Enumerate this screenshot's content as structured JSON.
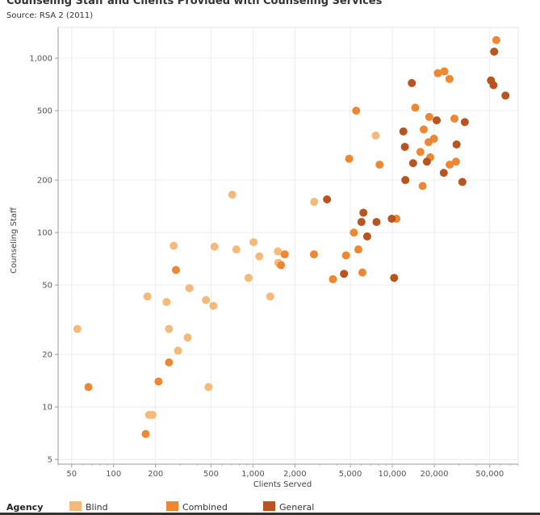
{
  "title": "Counseling Staff and Clients Provided with Counseling Services",
  "subtitle": "Source: RSA 2 (2011)",
  "legend": {
    "title": "Agency",
    "items": [
      {
        "label": "Blind",
        "color": "#f5b97a"
      },
      {
        "label": "Combined",
        "color": "#ee8733"
      },
      {
        "label": "General",
        "color": "#b7541f"
      }
    ]
  },
  "chart_data": {
    "type": "scatter",
    "xlabel": "Clients Served",
    "ylabel": "Counseling Staff",
    "x_scale": "log",
    "y_scale": "log",
    "xlim": [
      40,
      80000
    ],
    "ylim": [
      4.7,
      1500
    ],
    "x_ticks": [
      {
        "value": 50,
        "label": "50"
      },
      {
        "value": 100,
        "label": "100"
      },
      {
        "value": 200,
        "label": "200"
      },
      {
        "value": 500,
        "label": "500"
      },
      {
        "value": 1000,
        "label": "1,000"
      },
      {
        "value": 2000,
        "label": "2,000"
      },
      {
        "value": 5000,
        "label": "5,000"
      },
      {
        "value": 10000,
        "label": "10,000"
      },
      {
        "value": 20000,
        "label": "20,000"
      },
      {
        "value": 50000,
        "label": "50,000"
      }
    ],
    "y_ticks": [
      {
        "value": 5,
        "label": "5"
      },
      {
        "value": 10,
        "label": "10"
      },
      {
        "value": 20,
        "label": "20"
      },
      {
        "value": 50,
        "label": "50"
      },
      {
        "value": 100,
        "label": "100"
      },
      {
        "value": 200,
        "label": "200"
      },
      {
        "value": 500,
        "label": "500"
      },
      {
        "value": 1000,
        "label": "1,000"
      }
    ],
    "grid": true,
    "series": [
      {
        "name": "Blind",
        "color": "#f5b97a",
        "points": [
          [
            55,
            28
          ],
          [
            175,
            43
          ],
          [
            180,
            9
          ],
          [
            190,
            9
          ],
          [
            240,
            40
          ],
          [
            250,
            28
          ],
          [
            270,
            84
          ],
          [
            290,
            21
          ],
          [
            340,
            25
          ],
          [
            350,
            48
          ],
          [
            460,
            41
          ],
          [
            480,
            13
          ],
          [
            520,
            38
          ],
          [
            530,
            83
          ],
          [
            710,
            165
          ],
          [
            760,
            80
          ],
          [
            930,
            55
          ],
          [
            1010,
            88
          ],
          [
            1110,
            73
          ],
          [
            1330,
            43
          ],
          [
            1510,
            78
          ],
          [
            1520,
            67
          ],
          [
            1560,
            66
          ],
          [
            2750,
            150
          ],
          [
            7600,
            360
          ]
        ]
      },
      {
        "name": "Combined",
        "color": "#ee8733",
        "points": [
          [
            66,
            13
          ],
          [
            170,
            7
          ],
          [
            210,
            14
          ],
          [
            250,
            18
          ],
          [
            280,
            61
          ],
          [
            1590,
            65
          ],
          [
            1690,
            75
          ],
          [
            2740,
            75
          ],
          [
            3750,
            54
          ],
          [
            4650,
            74
          ],
          [
            4900,
            265
          ],
          [
            5300,
            100
          ],
          [
            5500,
            500
          ],
          [
            5700,
            80
          ],
          [
            6100,
            59
          ],
          [
            8100,
            245
          ],
          [
            10700,
            120
          ],
          [
            14600,
            520
          ],
          [
            15900,
            290
          ],
          [
            16500,
            185
          ],
          [
            16800,
            390
          ],
          [
            18200,
            330
          ],
          [
            18400,
            460
          ],
          [
            18700,
            270
          ],
          [
            19900,
            345
          ],
          [
            21200,
            820
          ],
          [
            23600,
            840
          ],
          [
            25700,
            760
          ],
          [
            25800,
            245
          ],
          [
            27900,
            450
          ],
          [
            28600,
            255
          ],
          [
            55700,
            1270
          ]
        ]
      },
      {
        "name": "General",
        "color": "#b7541f",
        "points": [
          [
            3400,
            155
          ],
          [
            4500,
            58
          ],
          [
            6000,
            115
          ],
          [
            6200,
            130
          ],
          [
            6600,
            95
          ],
          [
            7700,
            115
          ],
          [
            9900,
            120
          ],
          [
            10300,
            55
          ],
          [
            12000,
            380
          ],
          [
            12300,
            310
          ],
          [
            12400,
            200
          ],
          [
            13800,
            720
          ],
          [
            14100,
            250
          ],
          [
            17700,
            255
          ],
          [
            20800,
            440
          ],
          [
            23400,
            220
          ],
          [
            28900,
            320
          ],
          [
            31800,
            195
          ],
          [
            33100,
            430
          ],
          [
            51000,
            745
          ],
          [
            53200,
            700
          ],
          [
            53800,
            1090
          ],
          [
            64800,
            610
          ]
        ]
      }
    ]
  }
}
